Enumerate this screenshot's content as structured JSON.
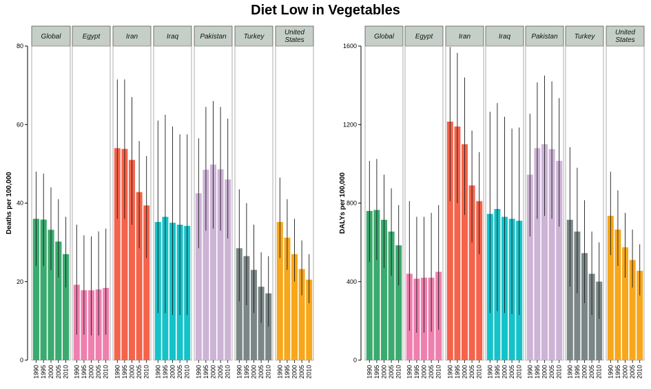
{
  "title": "Diet Low in Vegetables",
  "years": [
    "1990",
    "1995",
    "2000",
    "2005",
    "2010"
  ],
  "colors": {
    "Global": "#3aaa6e",
    "Egypt": "#ee7fae",
    "Iran": "#f4634a",
    "Iraq": "#16c2c9",
    "Pakistan": "#cdb3d6",
    "Turkey": "#7b8786",
    "United States": "#f7a71b"
  },
  "chart_data": [
    {
      "type": "bar",
      "ylabel": "Deaths per 100,000",
      "ylim": [
        0,
        80
      ],
      "yticks": [
        "0",
        "20",
        "40",
        "60",
        "80"
      ],
      "panels": [
        {
          "name": "Global",
          "label": [
            "Global"
          ],
          "values": [
            36,
            35.8,
            33.2,
            30.2,
            27
          ],
          "upper": [
            48,
            47.5,
            44,
            41,
            36.5
          ],
          "lower": [
            24,
            24,
            23,
            21,
            18.5
          ]
        },
        {
          "name": "Egypt",
          "label": [
            "Egypt"
          ],
          "values": [
            19.2,
            17.8,
            17.8,
            18,
            18.4
          ],
          "upper": [
            34.5,
            31.8,
            31.5,
            32.8,
            33.5
          ],
          "lower": [
            6.5,
            6.5,
            6.3,
            6.3,
            6.5
          ]
        },
        {
          "name": "Iran",
          "label": [
            "Iran"
          ],
          "values": [
            54,
            53.8,
            51,
            42.8,
            39.4
          ],
          "upper": [
            71.5,
            71.5,
            67,
            55.8,
            52
          ],
          "lower": [
            36,
            36,
            34.5,
            28.5,
            26
          ]
        },
        {
          "name": "Iraq",
          "label": [
            "Iraq"
          ],
          "values": [
            35.2,
            36.5,
            35,
            34.5,
            34.2
          ],
          "upper": [
            61,
            62.5,
            59.5,
            57.5,
            57.5
          ],
          "lower": [
            12,
            12,
            11.5,
            11.5,
            11.5
          ]
        },
        {
          "name": "Pakistan",
          "label": [
            "Pakistan"
          ],
          "values": [
            42.5,
            48.5,
            49.8,
            48.6,
            46
          ],
          "upper": [
            56.5,
            64.5,
            66,
            64.5,
            61.5
          ],
          "lower": [
            28.5,
            33,
            33.5,
            33,
            31
          ]
        },
        {
          "name": "Turkey",
          "label": [
            "Turkey"
          ],
          "values": [
            28.5,
            26.5,
            23,
            18.7,
            17
          ],
          "upper": [
            43.5,
            40,
            34.5,
            27.5,
            26.5
          ],
          "lower": [
            15,
            14,
            12,
            9.5,
            8.5
          ]
        },
        {
          "name": "United States",
          "label": [
            "United",
            "States"
          ],
          "values": [
            35.2,
            31.2,
            27,
            23.2,
            20.5
          ],
          "upper": [
            46.5,
            41,
            36,
            30.5,
            27
          ],
          "lower": [
            26,
            23,
            20,
            16.5,
            14.5
          ]
        }
      ]
    },
    {
      "type": "bar",
      "ylabel": "DALYs per 100,000",
      "ylim": [
        0,
        1600
      ],
      "yticks": [
        "0",
        "400",
        "800",
        "1200",
        "1600"
      ],
      "panels": [
        {
          "name": "Global",
          "label": [
            "Global"
          ],
          "values": [
            760,
            765,
            715,
            655,
            585
          ],
          "upper": [
            1015,
            1025,
            945,
            875,
            790
          ],
          "lower": [
            500,
            510,
            470,
            430,
            380
          ]
        },
        {
          "name": "Egypt",
          "label": [
            "Egypt"
          ],
          "values": [
            440,
            415,
            420,
            420,
            450
          ],
          "upper": [
            810,
            730,
            730,
            750,
            790
          ],
          "lower": [
            150,
            140,
            140,
            145,
            155
          ]
        },
        {
          "name": "Iran",
          "label": [
            "Iran"
          ],
          "values": [
            1215,
            1190,
            1100,
            890,
            810
          ],
          "upper": [
            1595,
            1565,
            1440,
            1170,
            1060
          ],
          "lower": [
            810,
            800,
            740,
            600,
            540
          ]
        },
        {
          "name": "Iraq",
          "label": [
            "Iraq"
          ],
          "values": [
            745,
            770,
            730,
            720,
            710
          ],
          "upper": [
            1265,
            1310,
            1240,
            1180,
            1185
          ],
          "lower": [
            240,
            250,
            240,
            235,
            230
          ]
        },
        {
          "name": "Pakistan",
          "label": [
            "Pakistan"
          ],
          "values": [
            945,
            1080,
            1100,
            1075,
            1015
          ],
          "upper": [
            1255,
            1415,
            1450,
            1420,
            1335
          ],
          "lower": [
            630,
            720,
            735,
            720,
            680
          ]
        },
        {
          "name": "Turkey",
          "label": [
            "Turkey"
          ],
          "values": [
            715,
            655,
            545,
            440,
            400
          ],
          "upper": [
            1085,
            980,
            815,
            655,
            600
          ],
          "lower": [
            375,
            340,
            290,
            230,
            210
          ]
        },
        {
          "name": "United States",
          "label": [
            "United",
            "States"
          ],
          "values": [
            735,
            665,
            575,
            510,
            455
          ],
          "upper": [
            960,
            865,
            750,
            665,
            590
          ],
          "lower": [
            535,
            480,
            420,
            370,
            330
          ]
        }
      ]
    }
  ]
}
